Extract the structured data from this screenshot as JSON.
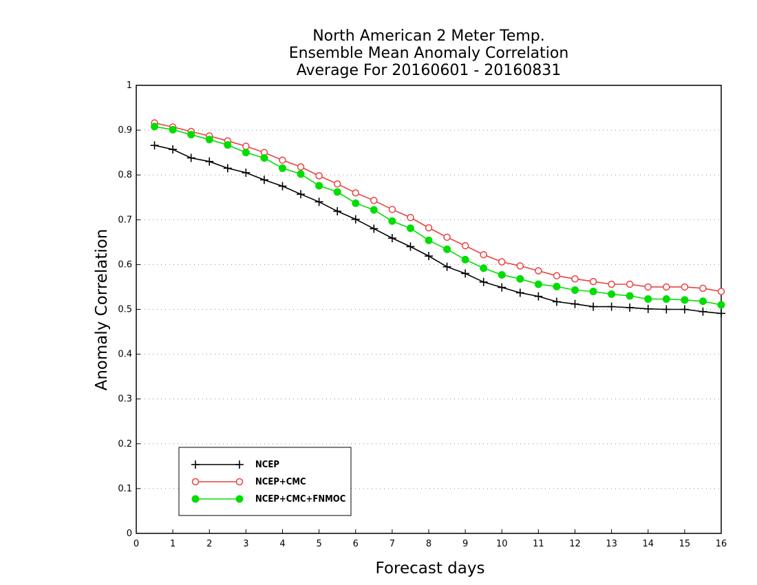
{
  "chart_data": {
    "type": "line",
    "title": [
      "North American 2 Meter Temp.",
      "Ensemble Mean Anomaly Correlation",
      "Average For 20160601 - 20160831"
    ],
    "xlabel": "Forecast days",
    "ylabel": "Anomaly Correlation",
    "xlim": [
      0,
      16
    ],
    "ylim": [
      0,
      1
    ],
    "xticks": [
      0,
      1,
      2,
      3,
      4,
      5,
      6,
      7,
      8,
      9,
      10,
      11,
      12,
      13,
      14,
      15,
      16
    ],
    "yticks": [
      0,
      0.1,
      0.2,
      0.3,
      0.4,
      0.5,
      0.6,
      0.7,
      0.8,
      0.9,
      1
    ],
    "grid": true,
    "legend_position": "bottom-left",
    "x": [
      0.5,
      1,
      1.5,
      2,
      2.5,
      3,
      3.5,
      4,
      4.5,
      5,
      5.5,
      6,
      6.5,
      7,
      7.5,
      8,
      8.5,
      9,
      9.5,
      10,
      10.5,
      11,
      11.5,
      12,
      12.5,
      13,
      13.5,
      14,
      14.5,
      15,
      15.5,
      16
    ],
    "series": [
      {
        "name": "NCEP",
        "color": "#000000",
        "marker": "plus",
        "values": [
          0.866,
          0.857,
          0.838,
          0.83,
          0.815,
          0.805,
          0.789,
          0.775,
          0.757,
          0.74,
          0.719,
          0.701,
          0.68,
          0.659,
          0.64,
          0.619,
          0.595,
          0.58,
          0.561,
          0.549,
          0.537,
          0.529,
          0.517,
          0.512,
          0.506,
          0.506,
          0.504,
          0.501,
          0.5,
          0.5,
          0.495,
          0.491
        ]
      },
      {
        "name": "NCEP+CMC",
        "color": "#e84040",
        "marker": "open-circle",
        "values": [
          0.916,
          0.907,
          0.897,
          0.887,
          0.876,
          0.864,
          0.85,
          0.833,
          0.818,
          0.798,
          0.78,
          0.76,
          0.743,
          0.723,
          0.705,
          0.682,
          0.661,
          0.642,
          0.622,
          0.606,
          0.597,
          0.586,
          0.575,
          0.568,
          0.562,
          0.556,
          0.556,
          0.55,
          0.55,
          0.55,
          0.547,
          0.54
        ]
      },
      {
        "name": "NCEP+CMC+FNMOC",
        "color": "#00dd00",
        "marker": "filled-circle",
        "values": [
          0.908,
          0.901,
          0.89,
          0.879,
          0.867,
          0.85,
          0.838,
          0.815,
          0.802,
          0.776,
          0.762,
          0.737,
          0.722,
          0.697,
          0.681,
          0.654,
          0.634,
          0.611,
          0.592,
          0.577,
          0.568,
          0.556,
          0.551,
          0.543,
          0.54,
          0.534,
          0.53,
          0.523,
          0.523,
          0.521,
          0.518,
          0.51
        ]
      }
    ]
  }
}
